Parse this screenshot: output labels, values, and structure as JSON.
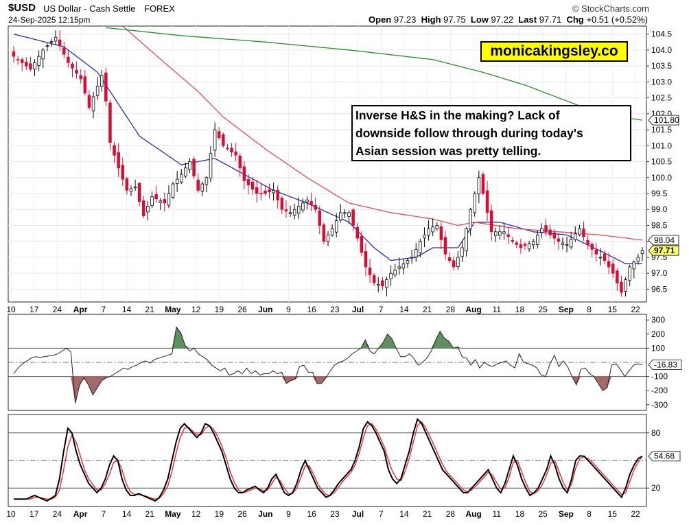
{
  "header": {
    "symbol": "$USD",
    "name": "US Dollar - Cash Settle",
    "exchange": "FOREX",
    "credit": "© StockCharts.com",
    "date": "24-Sep-2025 12:15pm",
    "ohlc": {
      "open_label": "Open",
      "open": "97.23",
      "high_label": "High",
      "high": "97.75",
      "low_label": "Low",
      "low": "97.22",
      "last_label": "Last",
      "last": "97.71",
      "chg_label": "Chg",
      "chg": "+0.51 (+0.52%)"
    }
  },
  "annotations": {
    "brand": "monicakingsley.co",
    "note_lines": [
      "Inverse H&S in the making? Lack of",
      "downside follow through during today's",
      "Asian session was pretty telling."
    ]
  },
  "colors": {
    "up": "#000000",
    "down": "#d40f36",
    "ma_short": "#2b2bb0",
    "ma_mid": "#e04a5a",
    "ma_long": "#2a8a2a",
    "cci_pos_fill": "#5f8f5f",
    "cci_neg_fill": "#a46a6a",
    "stoch_k": "#000000",
    "stoch_d": "#e8282f",
    "last_tag": "#ffff66"
  },
  "chart_data": [
    {
      "type": "candlestick",
      "panel": "price",
      "ylim": [
        96.1,
        104.75
      ],
      "y_ticks": [
        96.5,
        97.0,
        97.5,
        98.0,
        98.5,
        99.0,
        99.5,
        100.0,
        100.5,
        101.0,
        101.5,
        102.0,
        102.5,
        103.0,
        103.5,
        104.0,
        104.5
      ],
      "x_labels": [
        "10",
        "17",
        "24",
        "Apr",
        "7",
        "14",
        "21",
        "May",
        "12",
        "19",
        "26",
        "Jun",
        "9",
        "16",
        "23",
        "Jul",
        "7",
        "14",
        "21",
        "28",
        "Aug",
        "11",
        "18",
        "25",
        "Sep",
        "8",
        "15",
        "22"
      ],
      "x_labels_bold": [
        "Apr",
        "May",
        "Jun",
        "Jul",
        "Aug",
        "Sep"
      ],
      "close_anchors": [
        [
          0,
          103.8
        ],
        [
          4,
          103.4
        ],
        [
          7,
          104.0
        ],
        [
          10,
          104.4
        ],
        [
          13,
          103.6
        ],
        [
          16,
          103.1
        ],
        [
          18,
          102.2
        ],
        [
          21,
          103.2
        ],
        [
          22,
          102.4
        ],
        [
          23,
          101.1
        ],
        [
          25,
          100.3
        ],
        [
          27,
          99.6
        ],
        [
          29,
          99.7
        ],
        [
          31,
          98.8
        ],
        [
          33,
          99.4
        ],
        [
          36,
          99.2
        ],
        [
          38,
          99.8
        ],
        [
          40,
          100.1
        ],
        [
          42,
          100.5
        ],
        [
          44,
          99.6
        ],
        [
          46,
          100.0
        ],
        [
          48,
          101.5
        ],
        [
          50,
          101.0
        ],
        [
          53,
          100.7
        ],
        [
          55,
          99.9
        ],
        [
          58,
          99.5
        ],
        [
          60,
          99.5
        ],
        [
          62,
          99.6
        ],
        [
          64,
          99.0
        ],
        [
          66,
          98.9
        ],
        [
          70,
          99.3
        ],
        [
          72,
          99.0
        ],
        [
          74,
          98.0
        ],
        [
          76,
          98.4
        ],
        [
          78,
          98.9
        ],
        [
          80,
          98.9
        ],
        [
          82,
          98.1
        ],
        [
          84,
          97.2
        ],
        [
          86,
          96.7
        ],
        [
          88,
          96.6
        ],
        [
          90,
          97.0
        ],
        [
          93,
          97.3
        ],
        [
          95,
          97.5
        ],
        [
          97,
          98.0
        ],
        [
          99,
          98.4
        ],
        [
          101,
          98.5
        ],
        [
          103,
          97.6
        ],
        [
          105,
          97.2
        ],
        [
          107,
          97.8
        ],
        [
          109,
          99.0
        ],
        [
          111,
          100.0
        ],
        [
          112,
          99.5
        ],
        [
          114,
          98.3
        ],
        [
          117,
          98.3
        ],
        [
          119,
          98.0
        ],
        [
          121,
          97.8
        ],
        [
          124,
          98.0
        ],
        [
          126,
          98.4
        ],
        [
          128,
          98.2
        ],
        [
          130,
          98.0
        ],
        [
          132,
          97.9
        ],
        [
          135,
          98.4
        ],
        [
          137,
          97.9
        ],
        [
          139,
          97.6
        ],
        [
          141,
          97.4
        ],
        [
          143,
          97.0
        ],
        [
          145,
          96.4
        ],
        [
          147,
          97.2
        ],
        [
          149,
          97.5
        ],
        [
          150,
          97.71
        ]
      ],
      "last_close": 97.71,
      "right_tags": [
        {
          "label": "101.80",
          "value": 101.8,
          "style": "plain"
        },
        {
          "label": "98.04",
          "value": 98.04,
          "style": "plain"
        },
        {
          "label": "97.71",
          "value": 97.71,
          "style": "highlight"
        }
      ],
      "moving_averages": [
        {
          "color": "#2b2bb0",
          "anchors": [
            [
              0,
              104.5
            ],
            [
              12,
              104.1
            ],
            [
              20,
              103.3
            ],
            [
              30,
              101.3
            ],
            [
              40,
              100.4
            ],
            [
              48,
              100.6
            ],
            [
              55,
              100.1
            ],
            [
              62,
              99.6
            ],
            [
              70,
              99.2
            ],
            [
              80,
              98.6
            ],
            [
              86,
              97.8
            ],
            [
              90,
              97.4
            ],
            [
              96,
              97.5
            ],
            [
              100,
              97.8
            ],
            [
              106,
              97.8
            ],
            [
              110,
              98.6
            ],
            [
              116,
              98.6
            ],
            [
              124,
              98.3
            ],
            [
              132,
              98.2
            ],
            [
              140,
              97.7
            ],
            [
              146,
              97.3
            ],
            [
              150,
              97.3
            ]
          ]
        },
        {
          "color": "#e04a5a",
          "anchors": [
            [
              26,
              104.75
            ],
            [
              36,
              103.6
            ],
            [
              44,
              102.7
            ],
            [
              50,
              101.9
            ],
            [
              60,
              100.9
            ],
            [
              70,
              100.0
            ],
            [
              80,
              99.2
            ],
            [
              90,
              98.9
            ],
            [
              100,
              98.7
            ],
            [
              106,
              98.5
            ],
            [
              110,
              98.6
            ],
            [
              120,
              98.4
            ],
            [
              130,
              98.3
            ],
            [
              140,
              98.2
            ],
            [
              150,
              98.04
            ]
          ]
        },
        {
          "color": "#2a8a2a",
          "anchors": [
            [
              22,
              104.7
            ],
            [
              40,
              104.45
            ],
            [
              60,
              104.25
            ],
            [
              80,
              104.0
            ],
            [
              100,
              103.7
            ],
            [
              112,
              103.3
            ],
            [
              122,
              102.9
            ],
            [
              130,
              102.5
            ],
            [
              136,
              102.2
            ],
            [
              142,
              101.95
            ],
            [
              150,
              101.8
            ]
          ]
        }
      ]
    },
    {
      "type": "area",
      "panel": "cci",
      "ylim": [
        -340,
        340
      ],
      "y_ticks": [
        300,
        200,
        100,
        -100,
        -200,
        -300
      ],
      "ref_lines": [
        100,
        -100
      ],
      "current": -16.83,
      "current_label": "-16.83",
      "values": [
        -80,
        -40,
        -10,
        10,
        30,
        40,
        35,
        40,
        45,
        50,
        60,
        80,
        100,
        75,
        -290,
        -160,
        -110,
        -160,
        -230,
        -180,
        -130,
        -110,
        -100,
        -80,
        -60,
        -40,
        -50,
        -30,
        -20,
        0,
        10,
        -5,
        20,
        30,
        40,
        50,
        60,
        250,
        210,
        120,
        80,
        100,
        60,
        40,
        20,
        -20,
        -40,
        -60,
        -40,
        -90,
        -80,
        -60,
        -80,
        -40,
        -80,
        -60,
        -90,
        -80,
        -80,
        -60,
        -80,
        -70,
        -150,
        -130,
        -120,
        -30,
        -20,
        -70,
        -70,
        -150,
        -150,
        -110,
        -60,
        -20,
        0,
        10,
        30,
        60,
        80,
        100,
        160,
        80,
        60,
        100,
        140,
        200,
        170,
        100,
        40,
        40,
        60,
        30,
        -20,
        0,
        30,
        80,
        160,
        220,
        170,
        150,
        100,
        110,
        40,
        30,
        -20,
        20,
        -40,
        0,
        -20,
        -30,
        -10,
        0,
        10,
        -20,
        -40,
        60,
        0,
        -10,
        -20,
        -40,
        -90,
        -100,
        -10,
        50,
        -30,
        10,
        -30,
        -100,
        -160,
        -50,
        -40,
        -80,
        -100,
        -150,
        -200,
        -180,
        -20,
        -10,
        -50,
        -100,
        -60,
        -20,
        -10,
        -16.83
      ]
    },
    {
      "type": "line",
      "panel": "stochastic",
      "ylim": [
        0,
        100
      ],
      "y_ticks": [
        80,
        20
      ],
      "ref_lines": [
        80,
        50,
        20
      ],
      "current": 54.68,
      "current_label": "54.68",
      "series": [
        {
          "color": "#000000",
          "values": [
            8,
            8,
            8,
            8,
            10,
            12,
            10,
            8,
            6,
            9,
            12,
            30,
            60,
            85,
            80,
            60,
            45,
            35,
            25,
            20,
            15,
            20,
            30,
            45,
            55,
            50,
            30,
            18,
            12,
            12,
            14,
            12,
            10,
            8,
            6,
            10,
            18,
            30,
            50,
            70,
            85,
            90,
            85,
            80,
            75,
            80,
            90,
            88,
            80,
            70,
            60,
            45,
            30,
            20,
            15,
            15,
            18,
            20,
            22,
            18,
            15,
            20,
            30,
            35,
            25,
            15,
            12,
            15,
            25,
            40,
            50,
            40,
            30,
            20,
            15,
            10,
            12,
            18,
            25,
            30,
            35,
            40,
            50,
            65,
            85,
            92,
            88,
            80,
            70,
            60,
            40,
            30,
            25,
            30,
            45,
            60,
            80,
            95,
            90,
            80,
            70,
            60,
            50,
            40,
            35,
            30,
            25,
            20,
            15,
            15,
            20,
            25,
            30,
            35,
            40,
            30,
            20,
            15,
            25,
            40,
            55,
            45,
            30,
            20,
            12,
            15,
            20,
            30,
            40,
            55,
            45,
            30,
            20,
            15,
            30,
            50,
            55,
            54.68,
            50,
            45,
            40,
            35,
            30,
            25,
            20,
            15,
            10,
            20,
            35,
            45,
            52,
            54.68
          ]
        },
        {
          "color": "#e8282f",
          "values": [
            8,
            8,
            8,
            8,
            8,
            10,
            10,
            9,
            8,
            8,
            10,
            18,
            40,
            65,
            78,
            70,
            55,
            40,
            30,
            24,
            18,
            18,
            25,
            35,
            48,
            50,
            40,
            25,
            16,
            13,
            13,
            12,
            11,
            9,
            8,
            9,
            14,
            22,
            38,
            58,
            75,
            85,
            86,
            82,
            78,
            78,
            85,
            88,
            84,
            76,
            66,
            53,
            38,
            26,
            18,
            15,
            16,
            18,
            20,
            19,
            17,
            18,
            25,
            32,
            28,
            20,
            14,
            14,
            20,
            32,
            44,
            44,
            35,
            25,
            18,
            13,
            12,
            15,
            21,
            27,
            32,
            37,
            45,
            58,
            75,
            88,
            90,
            84,
            75,
            65,
            50,
            38,
            30,
            28,
            38,
            52,
            70,
            88,
            92,
            85,
            76,
            66,
            56,
            46,
            38,
            33,
            28,
            23,
            18,
            16,
            18,
            22,
            27,
            32,
            37,
            34,
            26,
            19,
            20,
            32,
            48,
            50,
            38,
            26,
            16,
            14,
            17,
            24,
            34,
            47,
            50,
            38,
            26,
            18,
            24,
            42,
            52,
            54,
            52,
            48,
            43,
            38,
            33,
            28,
            23,
            18,
            13,
            15,
            27,
            40,
            48,
            54.68
          ]
        }
      ]
    }
  ]
}
